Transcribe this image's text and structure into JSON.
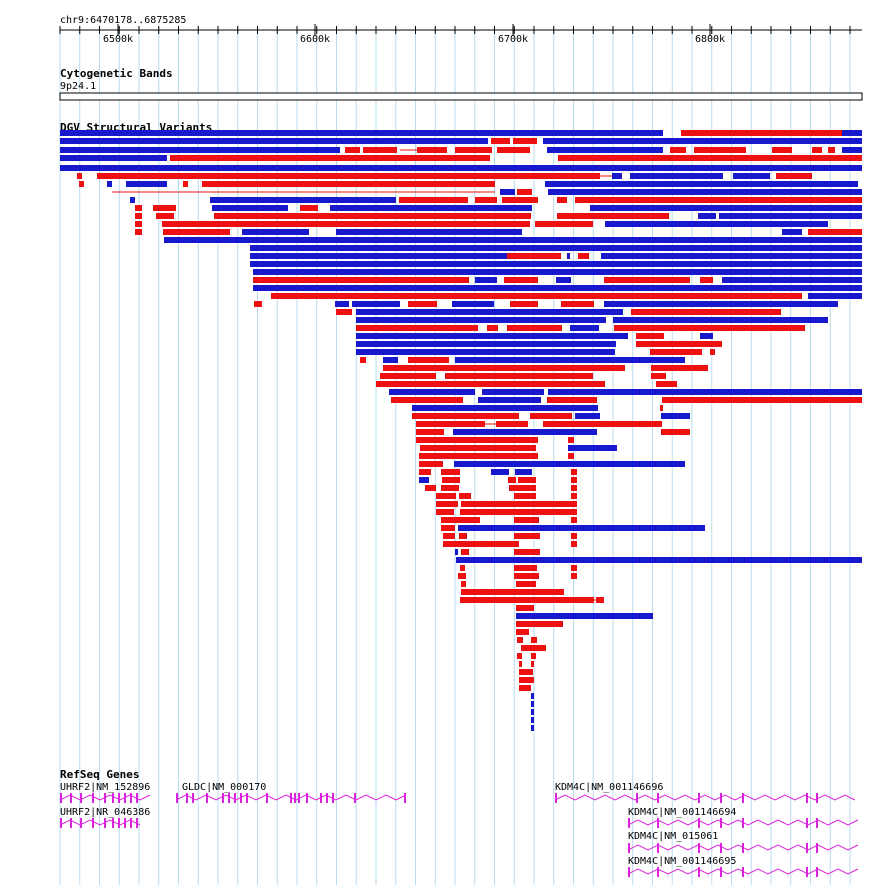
{
  "ruler": {
    "location": "chr9:6470178..6875285",
    "ticks": [
      "6500k",
      "6600k",
      "6700k",
      "6800k"
    ]
  },
  "cyto": {
    "title": "Cytogenetic Bands",
    "band": "9p24.1"
  },
  "dgv": {
    "title": "DGV Structural Variants",
    "colors": {
      "loss": "#ee1111",
      "gain": "#1818cc"
    }
  },
  "refseq": {
    "title": "RefSeq Genes",
    "color": "#dd22dd",
    "genes": [
      {
        "name": "UHRF2|NM_152896"
      },
      {
        "name": "UHRF2|NR_046386"
      },
      {
        "name": "GLDC|NM_000170"
      },
      {
        "name": "KDM4C|NM_001146696"
      },
      {
        "name": "KDM4C|NM_001146694"
      },
      {
        "name": "KDM4C|NM_015061"
      },
      {
        "name": "KDM4C|NM_001146695"
      }
    ]
  }
}
